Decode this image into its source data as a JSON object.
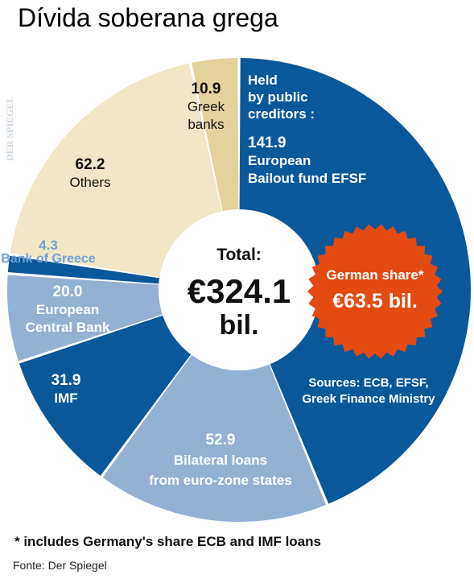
{
  "title": "Dívida soberana grega",
  "chart_data": {
    "type": "pie",
    "style": "donut",
    "total_label": "Total:",
    "total_value": "€324.1",
    "total_unit": "bil.",
    "held_by_label": [
      "Held",
      "by public",
      "creditors :"
    ],
    "slices": [
      {
        "value": 141.9,
        "value_text": "141.9",
        "label": [
          "European",
          "Bailout fund EFSF"
        ],
        "color": "#0a5899",
        "text_color": "#ffffff"
      },
      {
        "value": 52.9,
        "value_text": "52.9",
        "label": [
          "Bilateral loans",
          "from euro-zone states"
        ],
        "color": "#93b1d5",
        "text_color": "#ffffff"
      },
      {
        "value": 31.9,
        "value_text": "31.9",
        "label": [
          "IMF"
        ],
        "color": "#0a5899",
        "text_color": "#ffffff"
      },
      {
        "value": 20.0,
        "value_text": "20.0",
        "label": [
          "European",
          "Central Bank"
        ],
        "color": "#93b1d5",
        "text_color": "#ffffff"
      },
      {
        "value": 4.3,
        "value_text": "4.3",
        "label": [
          "Bank of Greece"
        ],
        "color": "#0a5899",
        "text_color": "#6fa0d8"
      },
      {
        "value": 62.2,
        "value_text": "62.2",
        "label": [
          "Others"
        ],
        "color": "#f1e6c5",
        "text_color": "#111111"
      },
      {
        "value": 10.9,
        "value_text": "10.9",
        "label": [
          "Greek",
          "banks"
        ],
        "color": "#e4d29c",
        "text_color": "#111111"
      }
    ],
    "badge": {
      "label": "German share*",
      "value": "€63.5 bil.",
      "color": "#e34b12"
    },
    "sources": [
      "Sources: ECB, EFSF,",
      "Greek Finance Ministry"
    ]
  },
  "footnote": "* includes Germany's share ECB and IMF loans",
  "source": "Fonte: Der Spiegel",
  "watermark": "DER SPIEGEL"
}
